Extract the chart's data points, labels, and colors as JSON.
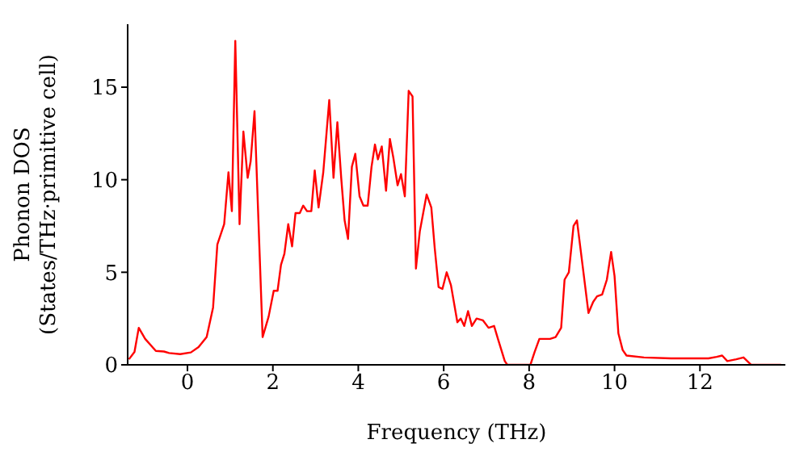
{
  "chart_data": {
    "type": "line",
    "xlabel": "Frequency (THz)",
    "ylabel": "Phonon DOS\n(States/THz·primitive cell)",
    "x": [
      -1.37,
      -1.24,
      -1.14,
      -0.99,
      -0.74,
      -0.55,
      -0.43,
      -0.17,
      0.08,
      0.26,
      0.45,
      0.6,
      0.7,
      0.86,
      0.96,
      1.04,
      1.12,
      1.22,
      1.31,
      1.41,
      1.48,
      1.57,
      1.76,
      1.9,
      2.02,
      2.11,
      2.19,
      2.27,
      2.36,
      2.45,
      2.53,
      2.63,
      2.71,
      2.8,
      2.9,
      2.98,
      3.07,
      3.18,
      3.32,
      3.42,
      3.51,
      3.6,
      3.68,
      3.76,
      3.85,
      3.93,
      4.03,
      4.12,
      4.22,
      4.31,
      4.39,
      4.46,
      4.55,
      4.65,
      4.74,
      4.82,
      4.92,
      5.0,
      5.09,
      5.18,
      5.27,
      5.35,
      5.44,
      5.6,
      5.71,
      5.79,
      5.88,
      5.97,
      6.07,
      6.17,
      6.32,
      6.4,
      6.48,
      6.57,
      6.66,
      6.77,
      6.92,
      7.05,
      7.18,
      7.27,
      7.43,
      7.49,
      8.03,
      8.13,
      8.24,
      8.49,
      8.62,
      8.75,
      8.83,
      8.93,
      9.04,
      9.12,
      9.25,
      9.39,
      9.5,
      9.59,
      9.71,
      9.82,
      9.92,
      10.0,
      10.09,
      10.19,
      10.28,
      10.69,
      11.32,
      12.2,
      12.39,
      12.52,
      12.64,
      12.85,
      13.02,
      13.2,
      13.9
    ],
    "series": [
      {
        "color": "#ff0000",
        "values": [
          0.3,
          0.7,
          2.0,
          1.4,
          0.75,
          0.72,
          0.64,
          0.58,
          0.67,
          0.96,
          1.5,
          3.1,
          6.5,
          7.6,
          10.4,
          8.3,
          17.5,
          7.6,
          12.6,
          10.1,
          11.0,
          13.7,
          1.5,
          2.6,
          4.0,
          4.0,
          5.4,
          6.0,
          7.6,
          6.4,
          8.2,
          8.2,
          8.6,
          8.3,
          8.3,
          10.5,
          8.5,
          10.4,
          14.3,
          10.1,
          13.1,
          10.1,
          7.8,
          6.8,
          10.7,
          11.4,
          9.1,
          8.6,
          8.6,
          10.7,
          11.9,
          11.1,
          11.8,
          9.4,
          12.2,
          11.2,
          9.7,
          10.3,
          9.1,
          14.8,
          14.5,
          5.2,
          7.2,
          9.2,
          8.5,
          6.3,
          4.2,
          4.1,
          5.0,
          4.3,
          2.3,
          2.5,
          2.1,
          2.9,
          2.1,
          2.5,
          2.4,
          2.0,
          2.1,
          1.4,
          0.2,
          0.0,
          0.0,
          0.7,
          1.4,
          1.4,
          1.5,
          2.0,
          4.6,
          5.0,
          7.5,
          7.8,
          5.4,
          2.8,
          3.4,
          3.7,
          3.8,
          4.6,
          6.1,
          4.8,
          1.7,
          0.8,
          0.5,
          0.4,
          0.35,
          0.35,
          0.43,
          0.5,
          0.2,
          0.3,
          0.4,
          0.0,
          0.0
        ]
      }
    ],
    "xlim": [
      -1.4,
      14
    ],
    "xticks": [
      0,
      2,
      4,
      6,
      8,
      10,
      12
    ],
    "ylim": [
      0,
      18.4
    ],
    "yticks": [
      0,
      5,
      10,
      15
    ],
    "grid": false,
    "legend": false,
    "marker": "none",
    "line_style": "solid"
  }
}
